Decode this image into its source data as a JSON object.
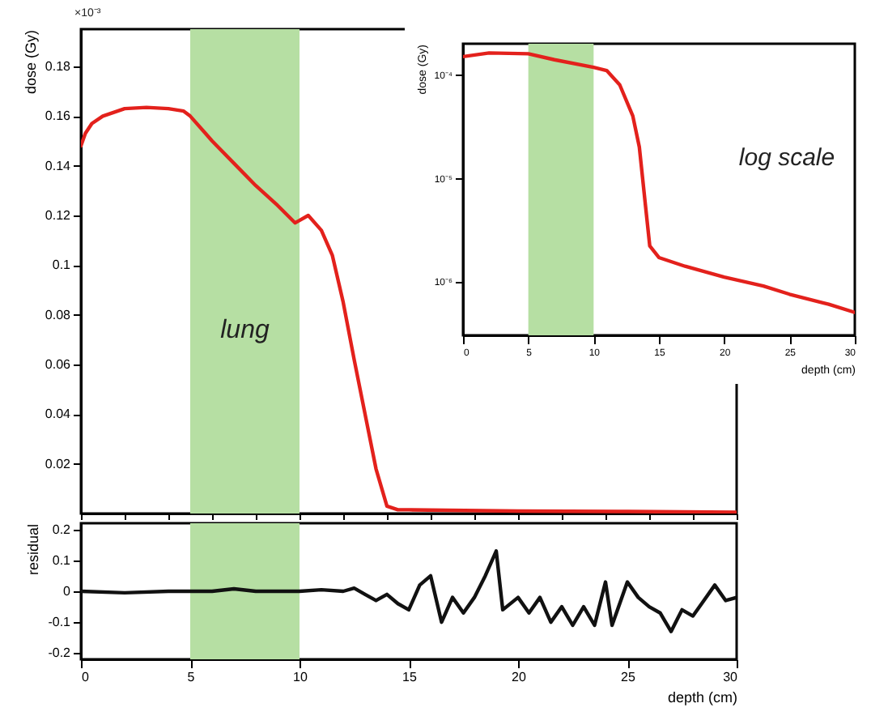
{
  "chart_data": [
    {
      "type": "line",
      "ylabel": "dose (Gy)",
      "annotations": [
        "×10⁻³"
      ],
      "x": [
        0,
        0.2,
        0.5,
        1,
        2,
        3,
        4,
        4.7,
        5,
        6,
        7,
        8,
        9,
        9.8,
        10,
        10.4,
        11,
        11.5,
        12,
        12.5,
        13,
        13.5,
        14,
        14.5,
        15,
        20,
        25,
        30
      ],
      "series": [
        {
          "color": "#e3211c",
          "values": [
            0.148,
            0.153,
            0.157,
            0.16,
            0.163,
            0.1635,
            0.163,
            0.162,
            0.16,
            0.15,
            0.141,
            0.132,
            0.124,
            0.117,
            0.118,
            0.12,
            0.114,
            0.104,
            0.085,
            0.062,
            0.04,
            0.018,
            0.003,
            0.0015,
            0.0015,
            0.001,
            0.0008,
            0.0005
          ]
        }
      ],
      "xlim": [
        0,
        30
      ],
      "ylim": [
        0,
        0.195
      ],
      "yticks": [
        0.02,
        0.04,
        0.06,
        0.08,
        0.1,
        0.12,
        0.14,
        0.16,
        0.18
      ],
      "tick_labels": "y",
      "grid": false,
      "bands": [
        {
          "axis": "x",
          "from": 5,
          "to": 10,
          "label": "lung",
          "color": "#b6dfa3"
        }
      ]
    },
    {
      "type": "line",
      "xlabel": "depth (cm)",
      "ylabel": "dose (Gy)",
      "annotations": [
        "log scale"
      ],
      "x": [
        0,
        2,
        5,
        7,
        10,
        11,
        12,
        13,
        13.5,
        14,
        14.3,
        15,
        17,
        20,
        23,
        25,
        28,
        30
      ],
      "series": [
        {
          "color": "#e3211c",
          "values": [
            0.00015,
            0.000163,
            0.00016,
            0.00014,
            0.000118,
            0.00011,
            8e-05,
            4e-05,
            2e-05,
            5e-06,
            2.2e-06,
            1.7e-06,
            1.4e-06,
            1.1e-06,
            9e-07,
            7.5e-07,
            6e-07,
            5e-07
          ]
        }
      ],
      "xlim": [
        0,
        30
      ],
      "xticks": [
        0,
        5,
        10,
        15,
        20,
        25,
        30
      ],
      "log": "y",
      "ylim": [
        3e-07,
        0.0002
      ],
      "yticks": [
        {
          "value": 1e-06,
          "label": "10⁻⁶"
        },
        {
          "value": 1e-05,
          "label": "10⁻⁵"
        },
        {
          "value": 0.0001,
          "label": "10⁻⁴"
        }
      ],
      "grid": false,
      "bands": [
        {
          "axis": "x",
          "from": 5,
          "to": 10,
          "color": "#b6dfa3"
        }
      ]
    },
    {
      "type": "line",
      "xlabel": "depth (cm)",
      "ylabel": "residual",
      "x": [
        0,
        2,
        4,
        6,
        7,
        8,
        10,
        11,
        12,
        12.5,
        13,
        13.5,
        14,
        14.5,
        15,
        15.5,
        16,
        16.5,
        17,
        17.5,
        18,
        18.5,
        19,
        19.3,
        20,
        20.5,
        21,
        21.5,
        22,
        22.5,
        23,
        23.5,
        24,
        24.3,
        25,
        25.5,
        26,
        26.5,
        27,
        27.5,
        28,
        28.5,
        29,
        29.5,
        30
      ],
      "series": [
        {
          "color": "#111111",
          "values": [
            0,
            -0.005,
            0,
            0,
            0.008,
            0,
            0,
            0.005,
            0,
            0.01,
            -0.01,
            -0.03,
            -0.01,
            -0.04,
            -0.06,
            0.02,
            0.05,
            -0.1,
            -0.02,
            -0.07,
            -0.02,
            0.05,
            0.13,
            -0.06,
            -0.02,
            -0.07,
            -0.02,
            -0.1,
            -0.05,
            -0.11,
            -0.05,
            -0.11,
            0.03,
            -0.11,
            0.03,
            -0.02,
            -0.05,
            -0.07,
            -0.13,
            -0.06,
            -0.08,
            -0.03,
            0.02,
            -0.03,
            -0.02
          ]
        }
      ],
      "xlim": [
        0,
        30
      ],
      "xticks": [
        0,
        5,
        10,
        15,
        20,
        25,
        30
      ],
      "ylim": [
        -0.22,
        0.22
      ],
      "yticks": [
        -0.2,
        -0.1,
        0,
        0.1,
        0.2
      ],
      "grid": false,
      "bands": [
        {
          "axis": "x",
          "from": 5,
          "to": 10,
          "color": "#b6dfa3"
        }
      ]
    }
  ]
}
